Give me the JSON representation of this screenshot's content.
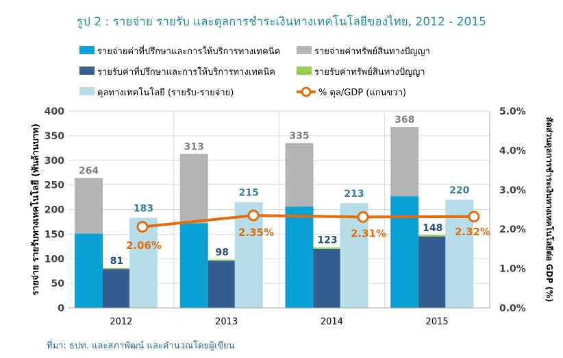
{
  "title": "รูป 2 : รายจ่าย รายรับ และดุลการชำระเงินทางเทคโนโลยีของไทย, 2012 - 2015",
  "source": "ที่มา: ธปท. และสภาพัฒน์ และคำนวณโดยผู้เขียน",
  "colors": {
    "consult_pay": "#0aa2d6",
    "ip_pay": "#b4b4b4",
    "consult_rec": "#355e90",
    "ip_rec": "#92d050",
    "balance": "#b7dde8",
    "gdp_line": "#e46c0a"
  },
  "chart_data": {
    "type": "bar",
    "categories": [
      "2012",
      "2013",
      "2014",
      "2015"
    ],
    "ylabel": "รายจ่าย รายรับทางเทคโนโลยี (พันล้านบาท)",
    "y2label": "สัดส่วนดุลการชำระเงินทางเทคโนโลยีต่อ GDP (%)",
    "ylim": [
      0,
      400
    ],
    "y2lim": [
      0,
      5.0
    ],
    "yticks": [
      "0",
      "50",
      "100",
      "150",
      "200",
      "250",
      "300",
      "350",
      "400"
    ],
    "y2ticks": [
      "0.0%",
      "1.0%",
      "2.0%",
      "3.0%",
      "4.0%",
      "5.0%"
    ],
    "legend_position": "top",
    "series": [
      {
        "name": "รายจ่ายค่าที่ปรึกษาและการให้บริการทางเทคนิค",
        "values": [
          151,
          172,
          206,
          227
        ],
        "stack": "payments",
        "color_key": "consult_pay"
      },
      {
        "name": "รายจ่ายค่าทรัพย์สินทางปัญญา",
        "values": [
          113,
          141,
          129,
          141
        ],
        "stack": "payments",
        "color_key": "ip_pay"
      },
      {
        "name": "รายรับค่าที่ปรึกษาและการให้บริการทางเทคนิค",
        "values": [
          79,
          96,
          120,
          145
        ],
        "stack": "receipts",
        "color_key": "consult_rec"
      },
      {
        "name": "รายรับค่าทรัพย์สินทางปัญญา",
        "values": [
          2,
          2,
          3,
          3
        ],
        "stack": "receipts",
        "color_key": "ip_rec"
      },
      {
        "name": "ดุลทางเทคโนโลยี (รายรับ-รายจ่าย)",
        "values": [
          183,
          215,
          213,
          220
        ],
        "stack": "balance",
        "color_key": "balance"
      },
      {
        "name": "% ดุล/GDP (แกนขวา)",
        "values": [
          2.06,
          2.35,
          2.31,
          2.32
        ],
        "axis": "right",
        "type": "line",
        "color_key": "gdp_line"
      }
    ],
    "bar_labels": {
      "payments": [
        "264",
        "313",
        "335",
        "368"
      ],
      "receipts": [
        "81",
        "98",
        "123",
        "148"
      ],
      "balance": [
        "183",
        "215",
        "213",
        "220"
      ],
      "gdp": [
        "2.06%",
        "2.35%",
        "2.31%",
        "2.32%"
      ]
    }
  }
}
